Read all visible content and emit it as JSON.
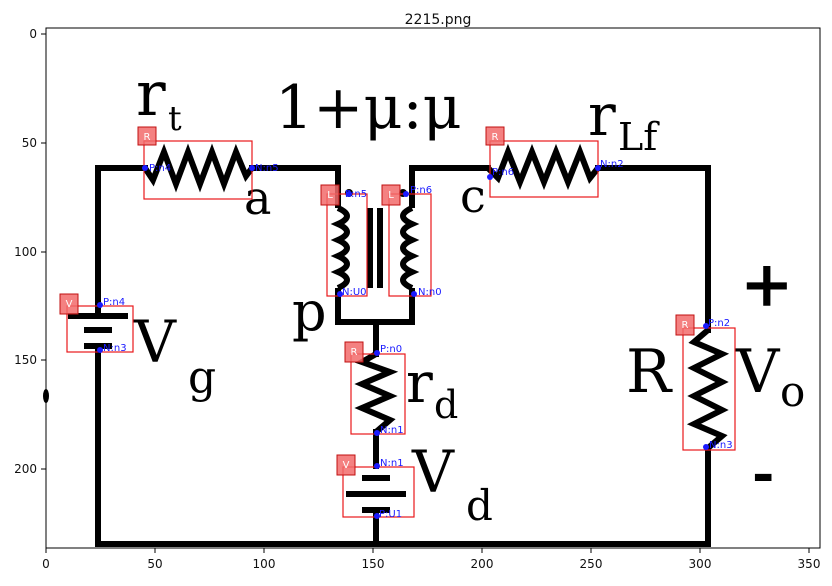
{
  "title": "2215.png",
  "x_ticks": [
    "0",
    "50",
    "100",
    "150",
    "200",
    "250",
    "300",
    "350"
  ],
  "y_ticks": [
    "0",
    "50",
    "100",
    "150",
    "200"
  ],
  "handwritten": {
    "rt": "r",
    "rt_sub": "t",
    "ratio": "1+μ:μ",
    "rlf": "r",
    "rlf_sub": "Lf",
    "a": "a",
    "c": "c",
    "p": "p",
    "vg": "V",
    "vg_sub": "g",
    "rd": "r",
    "rd_sub": "d",
    "vd": "V",
    "vd_sub": "d",
    "R": "R",
    "vo": "V",
    "vo_sub": "o",
    "plus": "+",
    "minus": "-"
  },
  "components": [
    {
      "type": "R",
      "pins": [
        "P:n4",
        "N:n5"
      ]
    },
    {
      "type": "R",
      "pins": [
        "P:n6",
        "N:n2"
      ]
    },
    {
      "type": "L",
      "pins": [
        "P:n5",
        "N:U0"
      ]
    },
    {
      "type": "L",
      "pins": [
        "P:n6",
        "N:n0"
      ]
    },
    {
      "type": "V",
      "pins": [
        "P:n4",
        "N:n3"
      ]
    },
    {
      "type": "R",
      "pins": [
        "P:n0",
        "N:n1"
      ]
    },
    {
      "type": "R",
      "pins": [
        "P:n2",
        "N:n3"
      ]
    },
    {
      "type": "V",
      "pins": [
        "N:n1",
        "P:U1"
      ]
    }
  ],
  "colors": {
    "box": "#e8181a",
    "badge": "#f26b6b",
    "pin": "#1a1aff",
    "ink": "#000000"
  }
}
